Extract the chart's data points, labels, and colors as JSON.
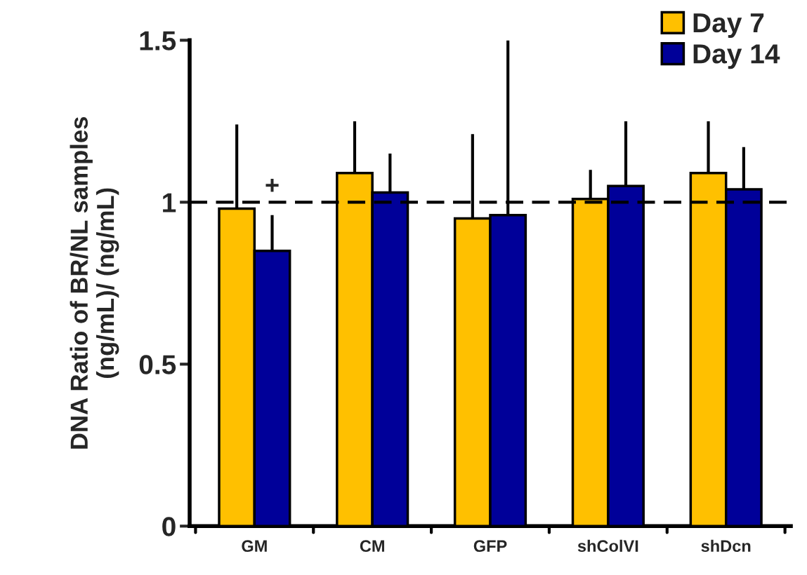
{
  "chart_data": {
    "type": "bar",
    "ylabel": "DNA Ratio of BR/NL samples\n(ng/mL)/ (ng/mL)",
    "categories": [
      "GM",
      "CM",
      "GFP",
      "shColVI",
      "shDcn"
    ],
    "series": [
      {
        "name": "Day 7",
        "color": "#ffc000",
        "values": [
          0.98,
          1.09,
          0.95,
          1.01,
          1.09
        ],
        "errors": [
          [
            0.98,
            1.24
          ],
          [
            1.09,
            1.25
          ],
          [
            0.95,
            1.21
          ],
          [
            1.01,
            1.1
          ],
          [
            1.09,
            1.25
          ]
        ]
      },
      {
        "name": "Day 14",
        "color": "#000099",
        "values": [
          0.85,
          1.03,
          0.96,
          1.05,
          1.04
        ],
        "errors": [
          [
            0.85,
            0.96
          ],
          [
            1.03,
            1.15
          ],
          [
            0.96,
            1.5
          ],
          [
            1.05,
            1.25
          ],
          [
            1.04,
            1.17
          ]
        ]
      }
    ],
    "ylim": [
      0,
      1.5
    ],
    "yticks": [
      0,
      0.5,
      1,
      1.5
    ],
    "ref_lines": [
      {
        "axis": "y",
        "value": 1,
        "line_style": "dashed",
        "color": "#000000"
      }
    ],
    "annotations": [
      {
        "text": "+",
        "x": "GM",
        "y": 0.96
      }
    ],
    "legend": "top right",
    "grid": false
  }
}
